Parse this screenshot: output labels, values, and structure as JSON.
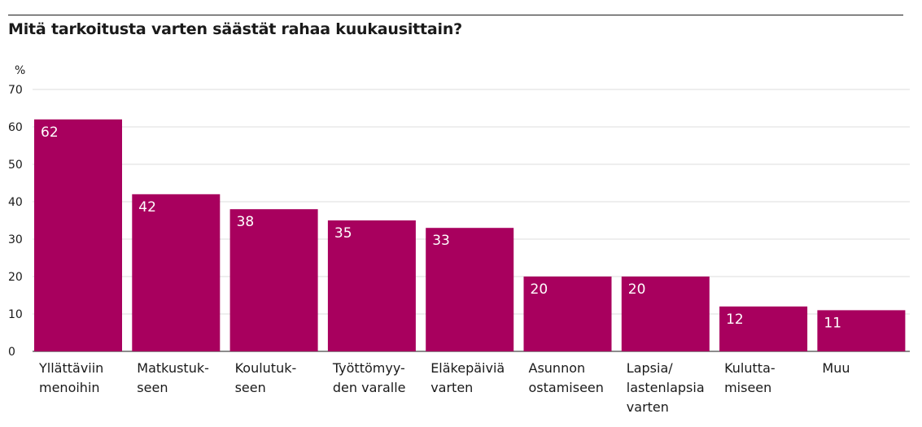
{
  "chart_data": {
    "type": "bar",
    "title": "Mitä tarkoitusta varten säästät rahaa kuukausittain?",
    "ylabel": "%",
    "xlabel": "",
    "ylim": [
      0,
      70
    ],
    "yticks": [
      0,
      10,
      20,
      30,
      40,
      50,
      60,
      70
    ],
    "grid": true,
    "bar_color": "#a8005e",
    "categories": [
      [
        "Yllättäviin",
        "menoihin"
      ],
      [
        "Matkustuk-",
        "seen"
      ],
      [
        "Koulutuk-",
        "seen"
      ],
      [
        "Työttömyy-",
        "den varalle"
      ],
      [
        "Eläkepäiviä",
        "varten"
      ],
      [
        "Asunnon",
        "ostamiseen"
      ],
      [
        "Lapsia/",
        "lastenlapsia",
        "varten"
      ],
      [
        "Kulutta-",
        "miseen"
      ],
      [
        "Muu"
      ]
    ],
    "values": [
      62,
      42,
      38,
      35,
      33,
      20,
      20,
      12,
      11
    ]
  }
}
